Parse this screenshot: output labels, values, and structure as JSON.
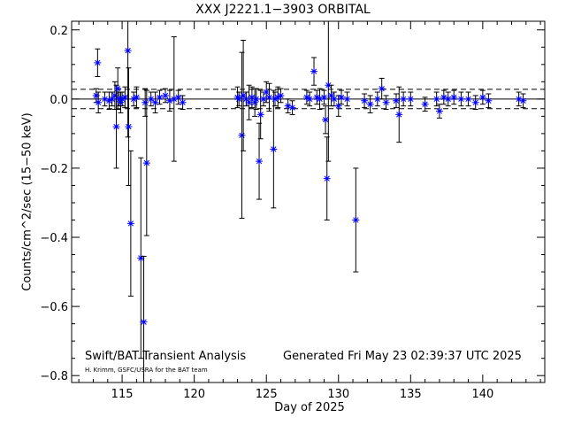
{
  "chart_data": {
    "type": "scatter",
    "title": "XXX J2221.1−3903 ORBITAL",
    "xlabel": "Day of 2025",
    "ylabel": "Counts/cm^2/sec (15−50 keV)",
    "xlim": [
      111.5,
      144.3
    ],
    "ylim": [
      -0.82,
      0.225
    ],
    "x_ticks": [
      115,
      120,
      125,
      130,
      135,
      140
    ],
    "y_ticks": [
      -0.8,
      -0.6,
      -0.4,
      -0.2,
      0.0,
      0.2
    ],
    "x_tick_labels": [
      "115",
      "120",
      "125",
      "130",
      "135",
      "140"
    ],
    "y_tick_labels": [
      "−0.8",
      "−0.6",
      "−0.4",
      "−0.2",
      "0.0",
      "0.2"
    ],
    "reference_lines": {
      "mean": 0.0,
      "upper": 0.028,
      "lower": -0.028
    },
    "marker": "asterisk",
    "marker_color": "#0000ff",
    "errorbar_color": "#000000",
    "grid": false,
    "points": [
      [
        113.2,
        0.01,
        0.02
      ],
      [
        113.3,
        0.105,
        0.04
      ],
      [
        113.35,
        -0.01,
        0.03
      ],
      [
        113.8,
        0.0,
        0.02
      ],
      [
        114.1,
        -0.005,
        0.025
      ],
      [
        114.3,
        0.0,
        0.02
      ],
      [
        114.5,
        0.01,
        0.04
      ],
      [
        114.6,
        -0.08,
        0.12
      ],
      [
        114.7,
        0.03,
        0.06
      ],
      [
        114.8,
        0.0,
        0.02
      ],
      [
        114.9,
        -0.01,
        0.03
      ],
      [
        115.0,
        0.0,
        0.02
      ],
      [
        115.2,
        0.005,
        0.03
      ],
      [
        115.4,
        0.14,
        0.25
      ],
      [
        115.45,
        -0.08,
        0.17
      ],
      [
        115.6,
        -0.36,
        0.21
      ],
      [
        115.8,
        0.0,
        0.02
      ],
      [
        116.0,
        0.005,
        0.03
      ],
      [
        116.3,
        -0.46,
        0.29
      ],
      [
        116.5,
        -0.645,
        0.19
      ],
      [
        116.6,
        -0.01,
        0.04
      ],
      [
        116.7,
        -0.185,
        0.21
      ],
      [
        117.0,
        0.0,
        0.02
      ],
      [
        117.3,
        -0.01,
        0.03
      ],
      [
        117.6,
        0.005,
        0.02
      ],
      [
        118.0,
        0.01,
        0.02
      ],
      [
        118.3,
        -0.005,
        0.03
      ],
      [
        118.6,
        0.0,
        0.18
      ],
      [
        118.9,
        0.005,
        0.02
      ],
      [
        119.2,
        -0.01,
        0.02
      ],
      [
        123.0,
        0.005,
        0.03
      ],
      [
        123.1,
        0.0,
        0.02
      ],
      [
        123.3,
        -0.105,
        0.24
      ],
      [
        123.4,
        0.01,
        0.16
      ],
      [
        123.6,
        0.0,
        0.02
      ],
      [
        123.8,
        -0.01,
        0.05
      ],
      [
        124.0,
        0.005,
        0.03
      ],
      [
        124.2,
        -0.01,
        0.04
      ],
      [
        124.3,
        0.0,
        0.03
      ],
      [
        124.5,
        -0.18,
        0.11
      ],
      [
        124.6,
        -0.045,
        0.07
      ],
      [
        124.8,
        0.0,
        0.02
      ],
      [
        125.0,
        0.02,
        0.03
      ],
      [
        125.2,
        0.005,
        0.04
      ],
      [
        125.5,
        -0.145,
        0.17
      ],
      [
        125.6,
        0.0,
        0.02
      ],
      [
        125.8,
        0.005,
        0.03
      ],
      [
        126.0,
        0.01,
        0.02
      ],
      [
        126.5,
        -0.02,
        0.02
      ],
      [
        126.8,
        -0.025,
        0.02
      ],
      [
        127.8,
        0.005,
        0.02
      ],
      [
        128.0,
        0.0,
        0.02
      ],
      [
        128.3,
        0.08,
        0.04
      ],
      [
        128.5,
        0.005,
        0.02
      ],
      [
        128.7,
        0.0,
        0.03
      ],
      [
        129.0,
        0.005,
        0.02
      ],
      [
        129.1,
        -0.06,
        0.04
      ],
      [
        129.2,
        -0.23,
        0.12
      ],
      [
        129.3,
        0.04,
        0.22
      ],
      [
        129.5,
        0.01,
        0.03
      ],
      [
        129.7,
        0.0,
        0.02
      ],
      [
        130.0,
        -0.02,
        0.03
      ],
      [
        130.2,
        0.005,
        0.02
      ],
      [
        130.6,
        0.0,
        0.02
      ],
      [
        131.2,
        -0.35,
        0.15
      ],
      [
        131.8,
        -0.005,
        0.02
      ],
      [
        132.2,
        -0.015,
        0.025
      ],
      [
        132.7,
        0.0,
        0.02
      ],
      [
        133.0,
        0.03,
        0.03
      ],
      [
        133.3,
        -0.01,
        0.02
      ],
      [
        134.0,
        -0.005,
        0.02
      ],
      [
        134.2,
        -0.045,
        0.08
      ],
      [
        134.5,
        0.0,
        0.02
      ],
      [
        135.0,
        0.0,
        0.02
      ],
      [
        136.0,
        -0.015,
        0.02
      ],
      [
        136.8,
        0.0,
        0.02
      ],
      [
        137.0,
        -0.035,
        0.02
      ],
      [
        137.3,
        0.005,
        0.02
      ],
      [
        137.6,
        0.0,
        0.02
      ],
      [
        138.0,
        0.005,
        0.02
      ],
      [
        138.5,
        0.0,
        0.02
      ],
      [
        139.0,
        0.0,
        0.02
      ],
      [
        139.5,
        -0.01,
        0.02
      ],
      [
        140.0,
        0.005,
        0.02
      ],
      [
        140.4,
        -0.005,
        0.02
      ],
      [
        142.5,
        0.0,
        0.02
      ],
      [
        142.8,
        -0.005,
        0.02
      ]
    ]
  },
  "footer": {
    "left_label": "Swift/BAT Transient Analysis",
    "credit": "H. Krimm, GSFC/USRA for the BAT team",
    "generated": "Generated Fri May 23 02:39:37 UTC 2025"
  }
}
